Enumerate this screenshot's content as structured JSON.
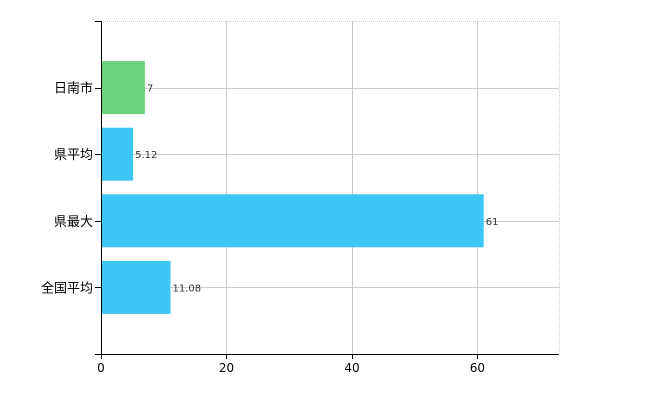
{
  "chart_data": {
    "type": "bar",
    "orientation": "horizontal",
    "categories": [
      "日南市",
      "県平均",
      "県最大",
      "全国平均"
    ],
    "values": [
      7,
      5.12,
      61,
      11.08
    ],
    "data_labels": [
      "7",
      "5.12",
      "61",
      "11.08"
    ],
    "bar_colors": [
      "#6ed37f",
      "#3ec6f7",
      "#3ec6f7",
      "#3ec6f7"
    ],
    "xlim": [
      0,
      73
    ],
    "xticks": [
      0,
      20,
      40,
      60
    ],
    "xtick_labels": [
      "0",
      "20",
      "40",
      "60"
    ],
    "grid": true,
    "legend": "none"
  }
}
